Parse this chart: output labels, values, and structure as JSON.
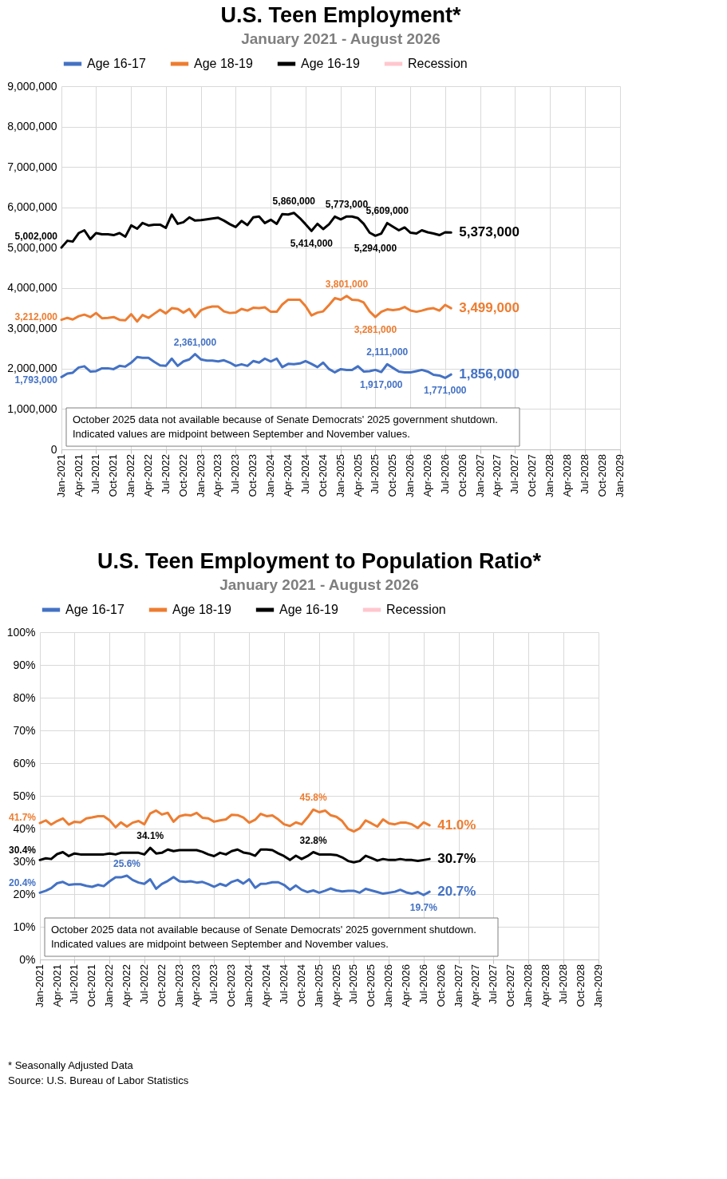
{
  "chart_data": [
    {
      "type": "line",
      "title": "U.S. Teen Employment*",
      "subtitle": "January 2021 - August 2026",
      "x": [
        "2021-01",
        "2021-02",
        "2021-03",
        "2021-04",
        "2021-05",
        "2021-06",
        "2021-07",
        "2021-08",
        "2021-09",
        "2021-10",
        "2021-11",
        "2021-12",
        "2022-01",
        "2022-02",
        "2022-03",
        "2022-04",
        "2022-05",
        "2022-06",
        "2022-07",
        "2022-08",
        "2022-09",
        "2022-10",
        "2022-11",
        "2022-12",
        "2023-01",
        "2023-02",
        "2023-03",
        "2023-04",
        "2023-05",
        "2023-06",
        "2023-07",
        "2023-08",
        "2023-09",
        "2023-10",
        "2023-11",
        "2023-12",
        "2024-01",
        "2024-02",
        "2024-03",
        "2024-04",
        "2024-05",
        "2024-06",
        "2024-07",
        "2024-08",
        "2024-09",
        "2024-10",
        "2024-11",
        "2024-12",
        "2025-01",
        "2025-02",
        "2025-03",
        "2025-04",
        "2025-05",
        "2025-06",
        "2025-07",
        "2025-08",
        "2025-09",
        "2025-10",
        "2025-11",
        "2025-12",
        "2026-01",
        "2026-02",
        "2026-03",
        "2026-04",
        "2026-05",
        "2026-06",
        "2026-07",
        "2026-08"
      ],
      "series": [
        {
          "name": "Age 16-17",
          "color": "#4472c4",
          "values": [
            1793000,
            1880000,
            1900000,
            2030000,
            2060000,
            1930000,
            1940000,
            2010000,
            2010000,
            1990000,
            2070000,
            2050000,
            2150000,
            2290000,
            2270000,
            2270000,
            2170000,
            2080000,
            2070000,
            2250000,
            2070000,
            2180000,
            2230000,
            2361000,
            2230000,
            2200000,
            2200000,
            2180000,
            2210000,
            2150000,
            2070000,
            2110000,
            2070000,
            2190000,
            2150000,
            2250000,
            2180000,
            2250000,
            2040000,
            2120000,
            2110000,
            2130000,
            2190000,
            2120000,
            2040000,
            2150000,
            1990000,
            1910000,
            1990000,
            1970000,
            1970000,
            2060000,
            1930000,
            1940000,
            1970000,
            1917000,
            2111000,
            2020000,
            1930000,
            1910000,
            1910000,
            1940000,
            1970000,
            1930000,
            1850000,
            1830000,
            1771000,
            1856000
          ]
        },
        {
          "name": "Age 18-19",
          "color": "#ed7d31",
          "values": [
            3212000,
            3260000,
            3220000,
            3300000,
            3340000,
            3280000,
            3380000,
            3250000,
            3260000,
            3280000,
            3210000,
            3200000,
            3350000,
            3170000,
            3330000,
            3260000,
            3360000,
            3460000,
            3370000,
            3500000,
            3480000,
            3390000,
            3480000,
            3280000,
            3450000,
            3510000,
            3540000,
            3540000,
            3420000,
            3380000,
            3390000,
            3480000,
            3440000,
            3510000,
            3500000,
            3520000,
            3410000,
            3410000,
            3590000,
            3710000,
            3710000,
            3710000,
            3550000,
            3320000,
            3390000,
            3420000,
            3580000,
            3750000,
            3710000,
            3801000,
            3710000,
            3700000,
            3640000,
            3420000,
            3281000,
            3410000,
            3470000,
            3450000,
            3470000,
            3530000,
            3440000,
            3410000,
            3440000,
            3480000,
            3500000,
            3440000,
            3580000,
            3499000
          ]
        },
        {
          "name": "Age 16-19",
          "color": "#000000",
          "values": [
            5002000,
            5170000,
            5150000,
            5360000,
            5430000,
            5210000,
            5360000,
            5330000,
            5330000,
            5310000,
            5360000,
            5270000,
            5550000,
            5470000,
            5610000,
            5550000,
            5570000,
            5570000,
            5490000,
            5820000,
            5590000,
            5630000,
            5750000,
            5670000,
            5680000,
            5700000,
            5720000,
            5740000,
            5670000,
            5580000,
            5510000,
            5660000,
            5560000,
            5750000,
            5770000,
            5610000,
            5690000,
            5590000,
            5830000,
            5820000,
            5860000,
            5730000,
            5580000,
            5414000,
            5590000,
            5460000,
            5580000,
            5770000,
            5700000,
            5773000,
            5770000,
            5730000,
            5590000,
            5370000,
            5294000,
            5350000,
            5609000,
            5520000,
            5430000,
            5500000,
            5370000,
            5350000,
            5430000,
            5380000,
            5350000,
            5310000,
            5380000,
            5373000
          ]
        },
        {
          "name": "Recession",
          "color": "#ffc7ce",
          "values": [
            null,
            null,
            null,
            null,
            null,
            null,
            null,
            null,
            null,
            null,
            null,
            null,
            null,
            null,
            null,
            null,
            null,
            null,
            null,
            null,
            null,
            null,
            null,
            null,
            null,
            null,
            null,
            null,
            null,
            null,
            null,
            null,
            null,
            null,
            null,
            null,
            null,
            null,
            null,
            null,
            null,
            null,
            null,
            null,
            null,
            null,
            null,
            null,
            null,
            null,
            null,
            null,
            null,
            null,
            null,
            null,
            null,
            null,
            null,
            null,
            null,
            null,
            null,
            null,
            null,
            null,
            null,
            null
          ]
        }
      ],
      "xlim": [
        "2021-01",
        "2029-01"
      ],
      "xticks": [
        {
          "value": "2021-01",
          "label": "Jan-2021"
        },
        {
          "value": "2021-04",
          "label": "Apr-2021"
        },
        {
          "value": "2021-07",
          "label": "Jul-2021"
        },
        {
          "value": "2021-10",
          "label": "Oct-2021"
        },
        {
          "value": "2022-01",
          "label": "Jan-2022"
        },
        {
          "value": "2022-04",
          "label": "Apr-2022"
        },
        {
          "value": "2022-07",
          "label": "Jul-2022"
        },
        {
          "value": "2022-10",
          "label": "Oct-2022"
        },
        {
          "value": "2023-01",
          "label": "Jan-2023"
        },
        {
          "value": "2023-04",
          "label": "Apr-2023"
        },
        {
          "value": "2023-07",
          "label": "Jul-2023"
        },
        {
          "value": "2023-10",
          "label": "Oct-2023"
        },
        {
          "value": "2024-01",
          "label": "Jan-2024"
        },
        {
          "value": "2024-04",
          "label": "Apr-2024"
        },
        {
          "value": "2024-07",
          "label": "Jul-2024"
        },
        {
          "value": "2024-10",
          "label": "Oct-2024"
        },
        {
          "value": "2025-01",
          "label": "Jan-2025"
        },
        {
          "value": "2025-04",
          "label": "Apr-2025"
        },
        {
          "value": "2025-07",
          "label": "Jul-2025"
        },
        {
          "value": "2025-10",
          "label": "Oct-2025"
        },
        {
          "value": "2026-01",
          "label": "Jan-2026"
        },
        {
          "value": "2026-04",
          "label": "Apr-2026"
        },
        {
          "value": "2026-07",
          "label": "Jul-2026"
        },
        {
          "value": "2026-10",
          "label": "Oct-2026"
        },
        {
          "value": "2027-01",
          "label": "Jan-2027"
        },
        {
          "value": "2027-04",
          "label": "Apr-2027"
        },
        {
          "value": "2027-07",
          "label": "Jul-2027"
        },
        {
          "value": "2027-10",
          "label": "Oct-2027"
        },
        {
          "value": "2028-01",
          "label": "Jan-2028"
        },
        {
          "value": "2028-04",
          "label": "Apr-2028"
        },
        {
          "value": "2028-07",
          "label": "Jul-2028"
        },
        {
          "value": "2028-10",
          "label": "Oct-2028"
        },
        {
          "value": "2029-01",
          "label": "Jan-2029"
        }
      ],
      "ylim": [
        0,
        9000000
      ],
      "yticks": [
        0,
        {
          "value": 1000000,
          "label": "1,000,000"
        },
        {
          "value": 2000000,
          "label": "2,000,000"
        },
        {
          "value": 3000000,
          "label": "3,000,000"
        },
        {
          "value": 4000000,
          "label": "4,000,000"
        },
        {
          "value": 5000000,
          "label": "5,000,000"
        },
        {
          "value": 6000000,
          "label": "6,000,000"
        },
        {
          "value": 7000000,
          "label": "7,000,000"
        },
        {
          "value": 8000000,
          "label": "8,000,000"
        },
        {
          "value": 9000000,
          "label": "9,000,000"
        }
      ],
      "grid": true,
      "legend": "top",
      "annotations": [
        "October 2025  data not available because of Senate Democrats' 2025 government shutdown.\nIndicated values are midpoint between September and November values.",
        {
          "text": "5,002,000",
          "x": "2021-01",
          "y": 5002000
        },
        {
          "text": "3,212,000",
          "x": "2021-01",
          "y": 3212000
        },
        {
          "text": "1,793,000",
          "x": "2021-01",
          "y": 1793000
        },
        {
          "text": "2,361,000",
          "x": "2022-12",
          "y": 2361000
        },
        {
          "text": "5,860,000",
          "x": "2024-05",
          "y": 5860000
        },
        {
          "text": "5,414,000",
          "x": "2024-08",
          "y": 5414000
        },
        {
          "text": "5,773,000",
          "x": "2025-02",
          "y": 5773000
        },
        {
          "text": "3,801,000",
          "x": "2025-02",
          "y": 3801000
        },
        {
          "text": "5,294,000",
          "x": "2025-07",
          "y": 5294000
        },
        {
          "text": "3,281,000",
          "x": "2025-07",
          "y": 3281000
        },
        {
          "text": "1,917,000",
          "x": "2025-08",
          "y": 1917000
        },
        {
          "text": "5,609,000",
          "x": "2025-09",
          "y": 5609000
        },
        {
          "text": "2,111,000",
          "x": "2025-09",
          "y": 2111000
        },
        {
          "text": "1,771,000",
          "x": "2026-07",
          "y": 1771000
        },
        {
          "text": "5,373,000",
          "x": "2026-08",
          "y": 5373000
        },
        {
          "text": "3,499,000",
          "x": "2026-08",
          "y": 3499000
        },
        {
          "text": "1,856,000",
          "x": "2026-08",
          "y": 1856000
        }
      ]
    },
    {
      "type": "line",
      "title": "U.S. Teen Employment to Population Ratio*",
      "subtitle": "January 2021 - August 2026",
      "x": [
        "2021-01",
        "2021-02",
        "2021-03",
        "2021-04",
        "2021-05",
        "2021-06",
        "2021-07",
        "2021-08",
        "2021-09",
        "2021-10",
        "2021-11",
        "2021-12",
        "2022-01",
        "2022-02",
        "2022-03",
        "2022-04",
        "2022-05",
        "2022-06",
        "2022-07",
        "2022-08",
        "2022-09",
        "2022-10",
        "2022-11",
        "2022-12",
        "2023-01",
        "2023-02",
        "2023-03",
        "2023-04",
        "2023-05",
        "2023-06",
        "2023-07",
        "2023-08",
        "2023-09",
        "2023-10",
        "2023-11",
        "2023-12",
        "2024-01",
        "2024-02",
        "2024-03",
        "2024-04",
        "2024-05",
        "2024-06",
        "2024-07",
        "2024-08",
        "2024-09",
        "2024-10",
        "2024-11",
        "2024-12",
        "2025-01",
        "2025-02",
        "2025-03",
        "2025-04",
        "2025-05",
        "2025-06",
        "2025-07",
        "2025-08",
        "2025-09",
        "2025-10",
        "2025-11",
        "2025-12",
        "2026-01",
        "2026-02",
        "2026-03",
        "2026-04",
        "2026-05",
        "2026-06",
        "2026-07",
        "2026-08"
      ],
      "series": [
        {
          "name": "Age 16-17",
          "color": "#4472c4",
          "values": [
            20.4,
            21.0,
            21.8,
            23.3,
            23.7,
            22.8,
            23.0,
            23.0,
            22.5,
            22.2,
            22.8,
            22.4,
            23.9,
            25.1,
            25.1,
            25.6,
            24.3,
            23.5,
            23.1,
            24.5,
            21.6,
            23.1,
            24.0,
            25.2,
            23.9,
            23.7,
            23.9,
            23.5,
            23.7,
            23.0,
            22.2,
            23.1,
            22.5,
            23.7,
            24.3,
            23.2,
            24.5,
            21.9,
            23.1,
            23.2,
            23.6,
            23.6,
            22.8,
            21.3,
            22.6,
            21.3,
            20.6,
            21.1,
            20.4,
            21.0,
            21.7,
            21.1,
            20.8,
            21.0,
            21.0,
            20.4,
            21.6,
            21.1,
            20.6,
            20.1,
            20.4,
            20.7,
            21.3,
            20.5,
            20.1,
            20.6,
            19.7,
            20.7
          ]
        },
        {
          "name": "Age 18-19",
          "color": "#ed7d31",
          "values": [
            41.7,
            42.5,
            41.2,
            42.3,
            43.1,
            41.2,
            42.1,
            41.9,
            43.1,
            43.4,
            43.8,
            43.8,
            42.5,
            40.4,
            41.9,
            40.6,
            41.8,
            42.3,
            41.3,
            44.6,
            45.5,
            44.3,
            44.8,
            42.1,
            43.8,
            44.2,
            44.0,
            44.8,
            43.3,
            43.1,
            42.1,
            42.5,
            42.8,
            44.2,
            44.1,
            43.4,
            41.8,
            42.7,
            44.5,
            43.8,
            44.0,
            42.8,
            41.3,
            40.8,
            41.9,
            41.3,
            43.4,
            45.8,
            45.0,
            45.5,
            44.1,
            43.6,
            42.3,
            39.9,
            39.1,
            40.1,
            42.5,
            41.6,
            40.6,
            42.8,
            41.6,
            41.3,
            41.8,
            41.8,
            41.3,
            40.2,
            41.9,
            41.0
          ]
        },
        {
          "name": "Age 16-19",
          "color": "#000000",
          "values": [
            30.4,
            30.9,
            30.7,
            32.2,
            32.8,
            31.6,
            32.4,
            32.1,
            32.1,
            32.1,
            32.1,
            32.1,
            32.4,
            32.1,
            32.6,
            32.6,
            32.6,
            32.6,
            32.1,
            34.1,
            32.4,
            32.6,
            33.6,
            33.1,
            33.4,
            33.4,
            33.4,
            33.4,
            32.9,
            32.1,
            31.6,
            32.6,
            32.1,
            33.1,
            33.6,
            32.7,
            32.4,
            31.7,
            33.6,
            33.6,
            33.4,
            32.4,
            31.6,
            30.4,
            31.7,
            30.7,
            31.6,
            32.8,
            32.1,
            32.1,
            32.1,
            31.9,
            31.2,
            30.1,
            29.7,
            30.1,
            31.7,
            31.0,
            30.2,
            30.7,
            30.4,
            30.4,
            30.7,
            30.4,
            30.4,
            30.1,
            30.4,
            30.7
          ]
        },
        {
          "name": "Recession",
          "color": "#ffc7ce",
          "values": [
            null,
            null,
            null,
            null,
            null,
            null,
            null,
            null,
            null,
            null,
            null,
            null,
            null,
            null,
            null,
            null,
            null,
            null,
            null,
            null,
            null,
            null,
            null,
            null,
            null,
            null,
            null,
            null,
            null,
            null,
            null,
            null,
            null,
            null,
            null,
            null,
            null,
            null,
            null,
            null,
            null,
            null,
            null,
            null,
            null,
            null,
            null,
            null,
            null,
            null,
            null,
            null,
            null,
            null,
            null,
            null,
            null,
            null,
            null,
            null,
            null,
            null,
            null,
            null,
            null,
            null,
            null,
            null
          ]
        }
      ],
      "xlim": [
        "2021-01",
        "2029-01"
      ],
      "xticks": [
        {
          "value": "2021-01",
          "label": "Jan-2021"
        },
        {
          "value": "2021-04",
          "label": "Apr-2021"
        },
        {
          "value": "2021-07",
          "label": "Jul-2021"
        },
        {
          "value": "2021-10",
          "label": "Oct-2021"
        },
        {
          "value": "2022-01",
          "label": "Jan-2022"
        },
        {
          "value": "2022-04",
          "label": "Apr-2022"
        },
        {
          "value": "2022-07",
          "label": "Jul-2022"
        },
        {
          "value": "2022-10",
          "label": "Oct-2022"
        },
        {
          "value": "2023-01",
          "label": "Jan-2023"
        },
        {
          "value": "2023-04",
          "label": "Apr-2023"
        },
        {
          "value": "2023-07",
          "label": "Jul-2023"
        },
        {
          "value": "2023-10",
          "label": "Oct-2023"
        },
        {
          "value": "2024-01",
          "label": "Jan-2024"
        },
        {
          "value": "2024-04",
          "label": "Apr-2024"
        },
        {
          "value": "2024-07",
          "label": "Jul-2024"
        },
        {
          "value": "2024-10",
          "label": "Oct-2024"
        },
        {
          "value": "2025-01",
          "label": "Jan-2025"
        },
        {
          "value": "2025-04",
          "label": "Apr-2025"
        },
        {
          "value": "2025-07",
          "label": "Jul-2025"
        },
        {
          "value": "2025-10",
          "label": "Oct-2025"
        },
        {
          "value": "2026-01",
          "label": "Jan-2026"
        },
        {
          "value": "2026-04",
          "label": "Apr-2026"
        },
        {
          "value": "2026-07",
          "label": "Jul-2026"
        },
        {
          "value": "2026-10",
          "label": "Oct-2026"
        },
        {
          "value": "2027-01",
          "label": "Jan-2027"
        },
        {
          "value": "2027-04",
          "label": "Apr-2027"
        },
        {
          "value": "2027-07",
          "label": "Jul-2027"
        },
        {
          "value": "2027-10",
          "label": "Oct-2027"
        },
        {
          "value": "2028-01",
          "label": "Jan-2028"
        },
        {
          "value": "2028-04",
          "label": "Apr-2028"
        },
        {
          "value": "2028-07",
          "label": "Jul-2028"
        },
        {
          "value": "2028-10",
          "label": "Oct-2028"
        },
        {
          "value": "2029-01",
          "label": "Jan-2029"
        }
      ],
      "ylim": [
        0,
        100
      ],
      "yticks": [
        {
          "value": 0,
          "label": "0%"
        },
        {
          "value": 10,
          "label": "10%"
        },
        {
          "value": 20,
          "label": "20%"
        },
        {
          "value": 30,
          "label": "30%"
        },
        {
          "value": 40,
          "label": "40%"
        },
        {
          "value": 50,
          "label": "50%"
        },
        {
          "value": 60,
          "label": "60%"
        },
        {
          "value": 70,
          "label": "70%"
        },
        {
          "value": 80,
          "label": "80%"
        },
        {
          "value": 90,
          "label": "90%"
        },
        {
          "value": 100,
          "label": "100%"
        }
      ],
      "grid": true,
      "legend": "top",
      "annotations": [
        "October 2025  data not available because of Senate Democrats' 2025 government shutdown.\nIndicated values are midpoint between September and November values.",
        "* Seasonally Adjusted Data",
        "Source: U.S. Bureau of Labor Statistics",
        {
          "text": "41.7%",
          "x": "2021-01",
          "y": 41.7
        },
        {
          "text": "30.4%",
          "x": "2021-01",
          "y": 30.4
        },
        {
          "text": "20.4%",
          "x": "2021-01",
          "y": 20.4
        },
        {
          "text": "25.6%",
          "x": "2022-04",
          "y": 25.6
        },
        {
          "text": "34.1%",
          "x": "2022-08",
          "y": 34.1
        },
        {
          "text": "45.8%",
          "x": "2024-12",
          "y": 45.8
        },
        {
          "text": "32.8%",
          "x": "2024-12",
          "y": 32.8
        },
        {
          "text": "19.7%",
          "x": "2026-07",
          "y": 19.7
        },
        {
          "text": "41.0%",
          "x": "2026-08",
          "y": 41.0
        },
        {
          "text": "30.7%",
          "x": "2026-08",
          "y": 30.7
        },
        {
          "text": "20.7%",
          "x": "2026-08",
          "y": 20.7
        }
      ]
    }
  ]
}
